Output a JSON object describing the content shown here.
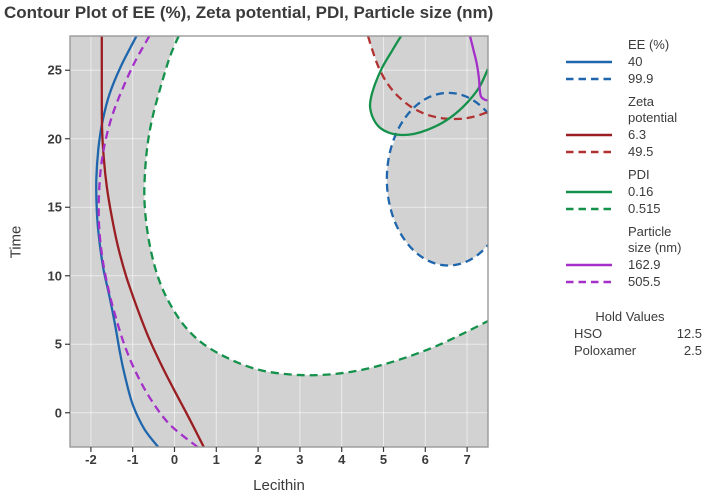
{
  "chart_data": {
    "type": "contour",
    "title": "Contour Plot of EE (%), Zeta potential, PDI, Particle size (nm)",
    "xlabel": "Lecithin",
    "ylabel": "Time",
    "xlim": [
      -2.5,
      7.5
    ],
    "ylim": [
      -2.5,
      27.5
    ],
    "xticks": [
      -2,
      -1,
      0,
      1,
      2,
      3,
      4,
      5,
      6,
      7
    ],
    "yticks": [
      0,
      5,
      10,
      15,
      20,
      25
    ],
    "grid": true,
    "legend_position": "right",
    "infeasible_fill": "#d2d2d2",
    "frame_color": "#9a9a9a",
    "gridline_color": "#ffffff",
    "text_color": "#3b3b3b",
    "hold_values": {
      "header": "Hold Values",
      "rows": [
        {
          "name": "HSO",
          "value": "12.5"
        },
        {
          "name": "Poloxamer",
          "value": "2.5"
        }
      ]
    },
    "regions": [
      {
        "name": "infeasible-outside-pdi-upper-limit",
        "curve": [
          [
            0.1,
            27.5
          ],
          [
            -0.12,
            25.9
          ],
          [
            -0.32,
            23.9
          ],
          [
            -0.5,
            21.9
          ],
          [
            -0.63,
            19.9
          ],
          [
            -0.7,
            17.8
          ],
          [
            -0.72,
            15.6
          ],
          [
            -0.66,
            13.5
          ],
          [
            -0.54,
            11.5
          ],
          [
            -0.36,
            9.6
          ],
          [
            -0.1,
            7.9
          ],
          [
            0.25,
            6.3
          ],
          [
            0.7,
            5.0
          ],
          [
            1.3,
            3.95
          ],
          [
            2.0,
            3.15
          ],
          [
            2.75,
            2.8
          ],
          [
            3.45,
            2.75
          ],
          [
            4.15,
            2.95
          ],
          [
            4.85,
            3.4
          ],
          [
            5.55,
            4.05
          ],
          [
            6.25,
            4.85
          ],
          [
            6.95,
            5.85
          ],
          [
            7.5,
            6.7
          ]
        ],
        "close": [
          [
            7.5,
            -2.5
          ],
          [
            -2.5,
            -2.5
          ],
          [
            -2.5,
            27.5
          ]
        ]
      },
      {
        "name": "infeasible-upper-right",
        "curve": [
          [
            4.63,
            27.5
          ],
          [
            4.73,
            26.5
          ],
          [
            4.86,
            25.5
          ],
          [
            4.95,
            24.9
          ],
          [
            4.82,
            24.0
          ],
          [
            4.72,
            23.2
          ],
          [
            4.68,
            22.6
          ],
          [
            4.73,
            21.7
          ],
          [
            4.85,
            21.0
          ],
          [
            5.03,
            20.5
          ],
          [
            5.28,
            20.2
          ],
          [
            5.13,
            18.68
          ],
          [
            5.08,
            17.05
          ],
          [
            5.13,
            15.42
          ],
          [
            5.28,
            13.9
          ],
          [
            5.51,
            12.6
          ],
          [
            5.82,
            11.6
          ],
          [
            6.17,
            10.97
          ],
          [
            6.55,
            10.75
          ],
          [
            6.93,
            10.97
          ],
          [
            7.29,
            11.6
          ],
          [
            7.5,
            12.3
          ]
        ],
        "close": [
          [
            7.5,
            27.5
          ]
        ]
      }
    ],
    "series": [
      {
        "name": "EE (%)",
        "name_lines": [
          "EE (%)"
        ],
        "contours": [
          {
            "label": "40",
            "style": "solid",
            "color": "#1f66ad",
            "points": [
              [
                -0.91,
                27.5
              ],
              [
                -1.28,
                25.3
              ],
              [
                -1.55,
                23.3
              ],
              [
                -1.72,
                21.3
              ],
              [
                -1.82,
                19.3
              ],
              [
                -1.87,
                17.0
              ],
              [
                -1.86,
                14.8
              ],
              [
                -1.8,
                12.6
              ],
              [
                -1.7,
                10.5
              ],
              [
                -1.55,
                8.4
              ],
              [
                -1.42,
                6.4
              ],
              [
                -1.3,
                4.3
              ],
              [
                -1.18,
                2.6
              ],
              [
                -1.0,
                0.6
              ],
              [
                -0.72,
                -1.2
              ],
              [
                -0.39,
                -2.5
              ]
            ]
          },
          {
            "label": "99.9",
            "style": "dashed",
            "color": "#1f66ad",
            "ellipse": {
              "cx": 6.55,
              "cy": 17.05,
              "rx": 1.47,
              "ry": 6.3
            }
          }
        ]
      },
      {
        "name": "Zeta potential",
        "name_lines": [
          "Zeta",
          "potential"
        ],
        "contours": [
          {
            "label": "6.3",
            "style": "solid",
            "color": "#9a1d22",
            "points": [
              [
                -1.74,
                27.5
              ],
              [
                -1.74,
                25.0
              ],
              [
                -1.74,
                22.5
              ],
              [
                -1.73,
                20.5
              ],
              [
                -1.69,
                18.5
              ],
              [
                -1.62,
                16.5
              ],
              [
                -1.5,
                14.3
              ],
              [
                -1.35,
                12.1
              ],
              [
                -1.15,
                9.9
              ],
              [
                -0.9,
                7.7
              ],
              [
                -0.62,
                5.5
              ],
              [
                -0.3,
                3.4
              ],
              [
                0.02,
                1.5
              ],
              [
                0.35,
                -0.4
              ],
              [
                0.7,
                -2.5
              ]
            ]
          },
          {
            "label": "49.5",
            "style": "dashed",
            "color": "#b23131",
            "points": [
              [
                4.63,
                27.5
              ],
              [
                4.75,
                26.3
              ],
              [
                4.9,
                25.1
              ],
              [
                5.1,
                24.0
              ],
              [
                5.35,
                23.1
              ],
              [
                5.65,
                22.35
              ],
              [
                6.0,
                21.8
              ],
              [
                6.4,
                21.5
              ],
              [
                6.8,
                21.45
              ],
              [
                7.15,
                21.6
              ],
              [
                7.5,
                21.95
              ]
            ]
          }
        ]
      },
      {
        "name": "PDI",
        "name_lines": [
          "PDI"
        ],
        "contours": [
          {
            "label": "0.16",
            "style": "solid",
            "color": "#14914a",
            "points": [
              [
                5.42,
                27.5
              ],
              [
                5.2,
                26.4
              ],
              [
                4.97,
                25.2
              ],
              [
                4.8,
                24.0
              ],
              [
                4.7,
                23.0
              ],
              [
                4.68,
                22.3
              ],
              [
                4.75,
                21.5
              ],
              [
                4.9,
                20.85
              ],
              [
                5.12,
                20.45
              ],
              [
                5.4,
                20.28
              ],
              [
                5.72,
                20.35
              ],
              [
                6.05,
                20.65
              ],
              [
                6.4,
                21.15
              ],
              [
                6.75,
                21.9
              ],
              [
                7.05,
                22.8
              ],
              [
                7.3,
                23.8
              ],
              [
                7.5,
                25.1
              ]
            ]
          },
          {
            "label": "0.515",
            "style": "dashed",
            "color": "#14914a",
            "points": [
              [
                0.1,
                27.5
              ],
              [
                -0.12,
                25.9
              ],
              [
                -0.32,
                23.9
              ],
              [
                -0.5,
                21.9
              ],
              [
                -0.63,
                19.9
              ],
              [
                -0.7,
                17.8
              ],
              [
                -0.72,
                15.6
              ],
              [
                -0.66,
                13.5
              ],
              [
                -0.54,
                11.5
              ],
              [
                -0.36,
                9.6
              ],
              [
                -0.1,
                7.9
              ],
              [
                0.25,
                6.3
              ],
              [
                0.7,
                5.0
              ],
              [
                1.3,
                3.95
              ],
              [
                2.0,
                3.15
              ],
              [
                2.75,
                2.8
              ],
              [
                3.45,
                2.75
              ],
              [
                4.15,
                2.95
              ],
              [
                4.85,
                3.4
              ],
              [
                5.55,
                4.05
              ],
              [
                6.25,
                4.85
              ],
              [
                6.95,
                5.85
              ],
              [
                7.5,
                6.7
              ]
            ]
          }
        ]
      },
      {
        "name": "Particle size (nm)",
        "name_lines": [
          "Particle",
          "size (nm)"
        ],
        "contours": [
          {
            "label": "162.9",
            "style": "solid",
            "color": "#a430c9",
            "points": [
              [
                7.07,
                27.5
              ],
              [
                7.15,
                26.5
              ],
              [
                7.23,
                25.5
              ],
              [
                7.28,
                24.5
              ],
              [
                7.3,
                23.7
              ],
              [
                7.33,
                23.1
              ],
              [
                7.42,
                22.85
              ],
              [
                7.5,
                22.8
              ]
            ]
          },
          {
            "label": "505.5",
            "style": "dashed",
            "color": "#a430c9",
            "points": [
              [
                -0.6,
                27.5
              ],
              [
                -0.95,
                25.6
              ],
              [
                -1.25,
                23.6
              ],
              [
                -1.5,
                21.6
              ],
              [
                -1.67,
                19.6
              ],
              [
                -1.77,
                17.6
              ],
              [
                -1.81,
                15.5
              ],
              [
                -1.8,
                13.4
              ],
              [
                -1.72,
                11.2
              ],
              [
                -1.58,
                9.0
              ],
              [
                -1.4,
                6.9
              ],
              [
                -1.18,
                4.8
              ],
              [
                -0.9,
                2.8
              ],
              [
                -0.55,
                0.9
              ],
              [
                -0.1,
                -0.9
              ],
              [
                0.55,
                -2.5
              ]
            ]
          }
        ]
      }
    ]
  }
}
